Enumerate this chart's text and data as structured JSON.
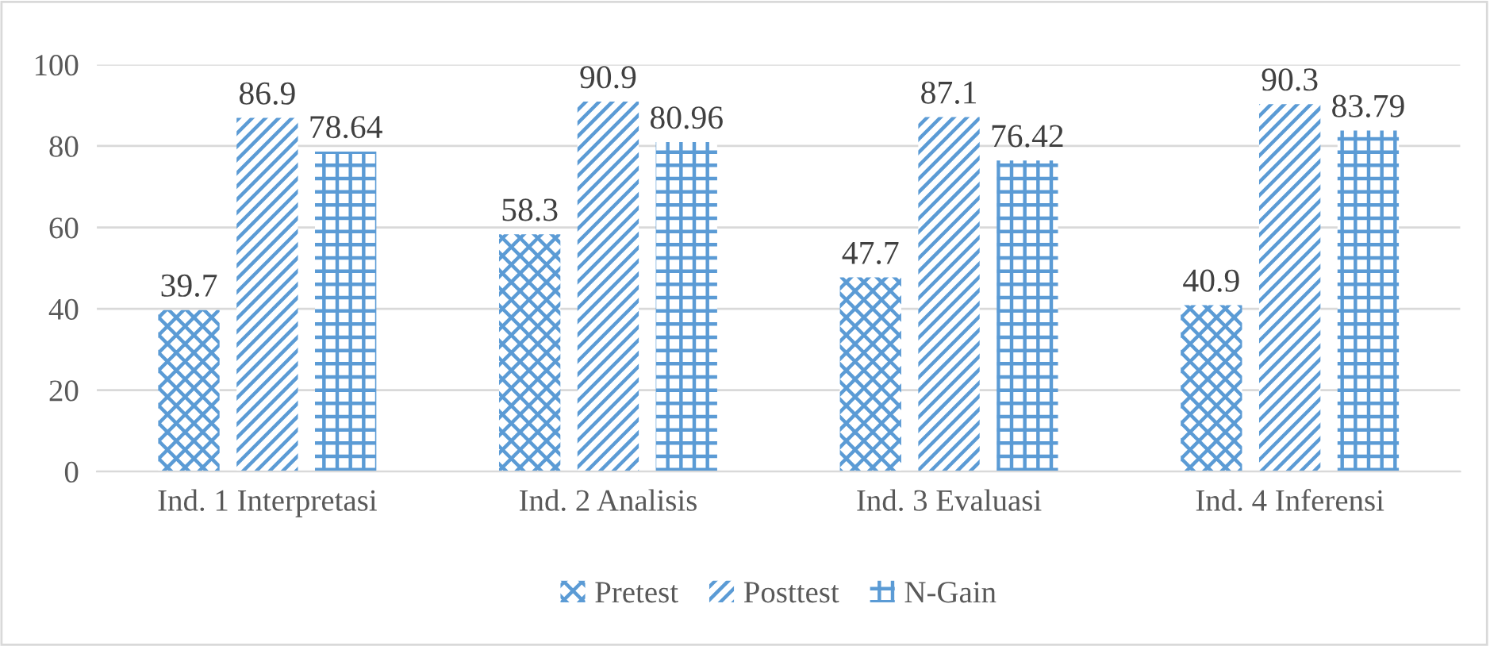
{
  "chart_data": {
    "type": "bar",
    "categories": [
      "Ind. 1 Interpretasi",
      "Ind. 2 Analisis",
      "Ind. 3 Evaluasi",
      "Ind. 4 Inferensi"
    ],
    "series": [
      {
        "name": "Pretest",
        "color": "#5b9bd5",
        "values": [
          39.7,
          58.3,
          47.7,
          40.9
        ]
      },
      {
        "name": "Posttest",
        "color": "#5b9bd5",
        "values": [
          86.9,
          90.9,
          87.1,
          90.3
        ]
      },
      {
        "name": "N-Gain",
        "color": "#5b9bd5",
        "values": [
          78.64,
          80.96,
          76.42,
          83.79
        ]
      }
    ],
    "ylim": [
      0,
      100
    ],
    "yticks": [
      0,
      20,
      40,
      60,
      80,
      100
    ],
    "grid": "y",
    "legend": "bottom",
    "data_labels": true
  }
}
